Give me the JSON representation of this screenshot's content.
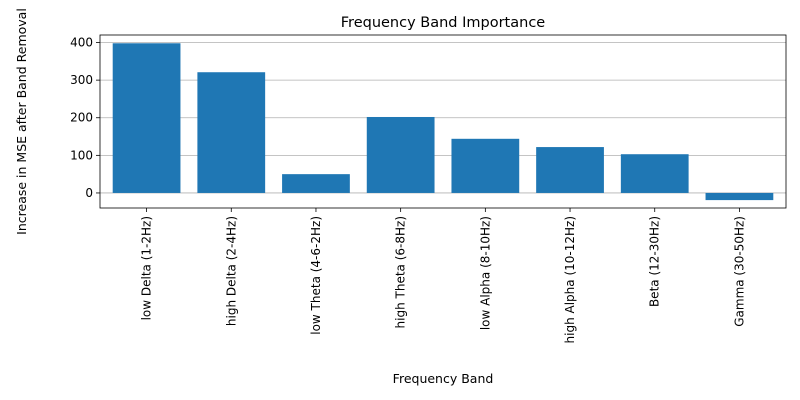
{
  "chart_data": {
    "type": "bar",
    "title": "Frequency Band Importance",
    "xlabel": "Frequency Band",
    "ylabel": "Increase in MSE after Band Removal",
    "categories": [
      "low Delta (1-2Hz)",
      "high Delta (2-4Hz)",
      "low Theta (4-6-2Hz)",
      "high Theta (6-8Hz)",
      "low Alpha (8-10Hz)",
      "high Alpha (10-12Hz)",
      "Beta (12-30Hz)",
      "Gamma (30-50Hz)"
    ],
    "values": [
      398,
      321,
      50,
      202,
      144,
      122,
      103,
      -19
    ],
    "ylim": [
      -40,
      420
    ],
    "yticks": [
      0,
      100,
      200,
      300,
      400
    ],
    "grid": "y",
    "bar_color": "#1f77b4"
  }
}
